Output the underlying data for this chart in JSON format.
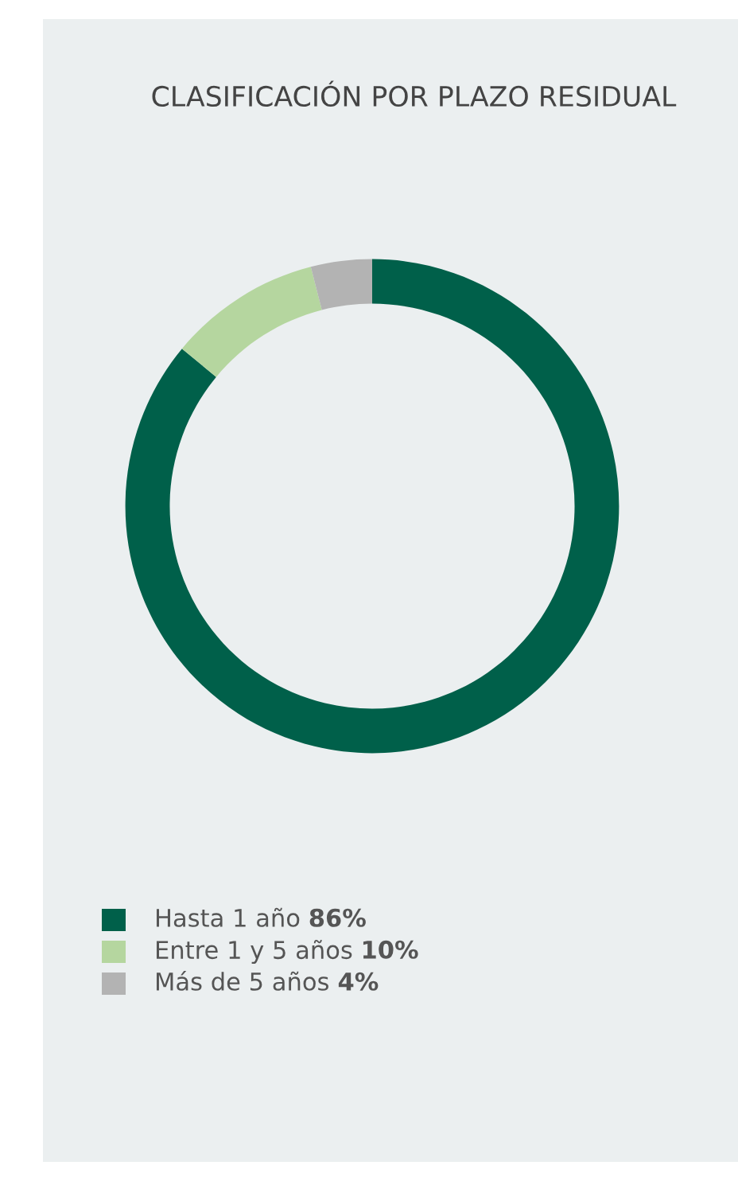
{
  "chart_data": {
    "type": "donut",
    "title": "CLASIFICACIÓN POR PLAZO RESIDUAL",
    "categories": [
      "Hasta 1 año",
      "Entre 1 y 5 años",
      "Más de 5 años"
    ],
    "values": [
      86,
      10,
      4
    ],
    "value_labels": [
      "86%",
      "10%",
      "4%"
    ],
    "colors": [
      "#00604a",
      "#b5d69f",
      "#b3b3b3"
    ],
    "legend": "bottom"
  }
}
